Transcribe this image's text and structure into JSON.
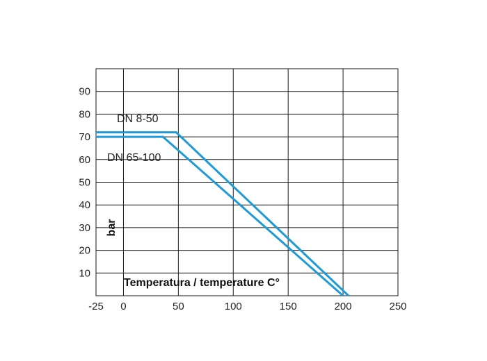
{
  "chart_data": {
    "type": "line",
    "title": "",
    "xlabel": "Temperatura / temperature C°",
    "ylabel": "bar",
    "xlim": [
      -25,
      250
    ],
    "ylim": [
      0,
      100
    ],
    "x_ticks": [
      -25,
      0,
      50,
      100,
      150,
      200,
      250
    ],
    "y_ticks": [
      10,
      20,
      30,
      40,
      50,
      60,
      70,
      80,
      90
    ],
    "grid": true,
    "series": [
      {
        "name": "DN 8-50",
        "color": "#1e9ad6",
        "points": [
          [
            -25,
            72
          ],
          [
            48,
            72
          ],
          [
            205,
            0
          ]
        ]
      },
      {
        "name": "DN 65-100",
        "color": "#1e9ad6",
        "points": [
          [
            -25,
            70
          ],
          [
            36,
            70
          ],
          [
            200,
            0
          ]
        ]
      }
    ]
  }
}
